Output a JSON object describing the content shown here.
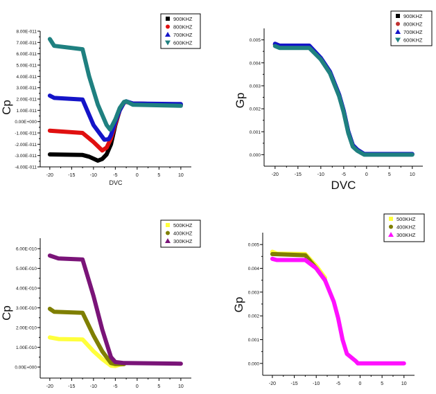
{
  "chart_data": [
    {
      "type": "scatter",
      "xlabel": "DVC",
      "ylabel": "Cp",
      "xlim": [
        -22.2,
        12.4
      ],
      "ylim": [
        -4e-11,
        8e-11
      ],
      "xticks": [
        -20,
        -15,
        -10,
        -5,
        0,
        5,
        10
      ],
      "xtick_labels": [
        "-20",
        "-15",
        "-10",
        "-5",
        "0",
        "5",
        "10"
      ],
      "yticks": [
        8e-11,
        7e-11,
        6e-11,
        5e-11,
        4e-11,
        3e-11,
        2e-11,
        1e-11,
        0,
        -1e-11,
        -2e-11,
        -3e-11,
        -4e-11
      ],
      "ytick_labels": [
        "8.00E-011",
        "7.00E-011",
        "6.00E-011",
        "5.00E-011",
        "4.00E-011",
        "3.00E-011",
        "2.00E-011",
        "1.00E-011",
        "0.00E+000",
        "-1.00E-011",
        "-2.00E-011",
        "-3.00E-011",
        "-4.00E-011"
      ],
      "legend_position": "top-right",
      "grid": false,
      "series": [
        {
          "name": "900KHZ",
          "color": "#000000",
          "marker": "square",
          "x": [
            -20,
            -12.5,
            -11,
            -9,
            -8,
            -7,
            -6,
            -5,
            -4,
            -3,
            -2.5,
            -1,
            10
          ],
          "y": [
            -2.9e-11,
            -2.95e-11,
            -3.1e-11,
            -3.45e-11,
            -3.3e-11,
            -2.9e-11,
            -2e-11,
            -3e-12,
            1e-11,
            1.7e-11,
            1.75e-11,
            1.6e-11,
            1.5e-11
          ]
        },
        {
          "name": "800KHZ",
          "color": "#e01010",
          "marker": "circle",
          "x": [
            -20,
            -12.5,
            -10,
            -8,
            -7,
            -6,
            -5,
            -4,
            -3,
            -2.5,
            -1,
            10
          ],
          "y": [
            -8e-12,
            -1e-11,
            -1.8e-11,
            -2.55e-11,
            -2.3e-11,
            -1.5e-11,
            -2e-12,
            1e-11,
            1.7e-11,
            1.75e-11,
            1.6e-11,
            1.5e-11
          ]
        },
        {
          "name": "700KHZ",
          "color": "#1414c8",
          "marker": "triangle-up",
          "x": [
            -20,
            -19,
            -12.5,
            -10,
            -7.5,
            -6.5,
            -6,
            -5,
            -4,
            -3,
            -2.5,
            -1,
            10
          ],
          "y": [
            2.3e-11,
            2.1e-11,
            1.95e-11,
            -3e-12,
            -1.6e-11,
            -1.55e-11,
            -1.2e-11,
            0,
            1e-11,
            1.7e-11,
            1.8e-11,
            1.6e-11,
            1.55e-11
          ]
        },
        {
          "name": "600KHZ",
          "color": "#1f8080",
          "marker": "triangle-down",
          "x": [
            -20,
            -19,
            -12.5,
            -11,
            -9,
            -7,
            -6.2,
            -5,
            -4,
            -3,
            -2.5,
            -1,
            10
          ],
          "y": [
            7.3e-11,
            6.7e-11,
            6.4e-11,
            4e-11,
            1.5e-11,
            -3e-12,
            -7e-12,
            2e-12,
            1.2e-11,
            1.75e-11,
            1.8e-11,
            1.5e-11,
            1.4e-11
          ]
        }
      ]
    },
    {
      "type": "scatter",
      "xlabel": "DVC",
      "ylabel": "Gp",
      "xlim": [
        -22.4,
        12.3
      ],
      "ylim": [
        -0.0005,
        0.0055
      ],
      "xticks": [
        -20,
        -15,
        -10,
        -5,
        0,
        5,
        10
      ],
      "xtick_labels": [
        "-20",
        "-15",
        "-10",
        "-5",
        "0",
        "5",
        "10"
      ],
      "yticks": [
        0.005,
        0.004,
        0.003,
        0.002,
        0.001,
        0
      ],
      "ytick_labels": [
        "0.005",
        "0.004",
        "0.003",
        "0.002",
        "0.001",
        "0.000"
      ],
      "legend_position": "top-right",
      "grid": false,
      "series": [
        {
          "name": "900KHZ",
          "color": "#000000",
          "marker": "square",
          "x": [
            -20,
            -19,
            -12.5,
            -10,
            -8,
            -6,
            -5,
            -4,
            -3,
            -2,
            -0.5,
            10
          ],
          "y": [
            0.0048,
            0.00472,
            0.00472,
            0.0042,
            0.0036,
            0.0026,
            0.0019,
            0.001,
            0.0004,
            0.0002,
            2e-05,
            2e-05
          ]
        },
        {
          "name": "800KHZ",
          "color": "#c03030",
          "marker": "circle",
          "x": [
            -20,
            -19,
            -12.5,
            -10,
            -8,
            -6,
            -5,
            -4,
            -3,
            -2,
            -0.5,
            10
          ],
          "y": [
            0.0048,
            0.00472,
            0.00472,
            0.0042,
            0.0036,
            0.0026,
            0.0019,
            0.001,
            0.0004,
            0.0002,
            2e-05,
            2e-05
          ]
        },
        {
          "name": "700KHZ",
          "color": "#1414c8",
          "marker": "triangle-up",
          "x": [
            -20,
            -19,
            -12.5,
            -10,
            -8,
            -6,
            -5,
            -4,
            -3,
            -2,
            -0.5,
            10
          ],
          "y": [
            0.00483,
            0.00475,
            0.00475,
            0.00422,
            0.00362,
            0.00262,
            0.00192,
            0.00102,
            0.00042,
            0.00022,
            3e-05,
            3e-05
          ]
        },
        {
          "name": "600KHZ",
          "color": "#1f8080",
          "marker": "triangle-down",
          "x": [
            -20,
            -19,
            -12.5,
            -10,
            -8,
            -6,
            -5,
            -4,
            -3,
            -2,
            -0.5,
            10
          ],
          "y": [
            0.00473,
            0.00465,
            0.00465,
            0.00415,
            0.00355,
            0.00255,
            0.00185,
            0.00095,
            0.00035,
            0.00017,
            0,
            0
          ]
        }
      ]
    },
    {
      "type": "scatter",
      "xlabel": "",
      "ylabel": "Cp",
      "xlim": [
        -22.2,
        12.4
      ],
      "ylim": [
        -5.6e-11,
        6.53e-10
      ],
      "xticks": [
        -20,
        -15,
        -10,
        -5,
        0,
        5,
        10
      ],
      "xtick_labels": [
        "-20",
        "-15",
        "-10",
        "-5",
        "0",
        "5",
        "10"
      ],
      "yticks": [
        6e-10,
        5e-10,
        4e-10,
        3e-10,
        2e-10,
        1e-10,
        0
      ],
      "ytick_labels": [
        "6.00E-010",
        "5.00E-010",
        "4.00E-010",
        "3.00E-010",
        "2.00E-010",
        "1.00E-010",
        "0.00E+000"
      ],
      "legend_position": "top-right",
      "grid": false,
      "series": [
        {
          "name": "500KHZ",
          "color": "#ffff3c",
          "marker": "square",
          "x": [
            -20,
            -18,
            -12.5,
            -10,
            -8,
            -6,
            -5,
            -4,
            -3
          ],
          "y": [
            1.5e-10,
            1.42e-10,
            1.4e-10,
            8e-11,
            4e-11,
            7e-12,
            5e-12,
            1.2e-11,
            1.5e-11
          ]
        },
        {
          "name": "400KHZ",
          "color": "#7f7f00",
          "marker": "circle",
          "x": [
            -20,
            -19,
            -12.5,
            -10,
            -8,
            -6,
            -5,
            -3
          ],
          "y": [
            2.95e-10,
            2.8e-10,
            2.75e-10,
            1.6e-10,
            8e-11,
            2e-11,
            1.5e-11,
            1.5e-11
          ]
        },
        {
          "name": "300KHZ",
          "color": "#7a1478",
          "marker": "triangle-up",
          "x": [
            -20,
            -18,
            -12.5,
            -10,
            -8,
            -6,
            -5,
            -3,
            10
          ],
          "y": [
            5.65e-10,
            5.5e-10,
            5.45e-10,
            3.6e-10,
            1.9e-10,
            5e-11,
            2.5e-11,
            2e-11,
            1.7e-11
          ]
        }
      ]
    },
    {
      "type": "scatter",
      "xlabel": "",
      "ylabel": "Gp",
      "xlim": [
        -22.2,
        12.4
      ],
      "ylim": [
        -0.0005,
        0.0055
      ],
      "xticks": [
        -20,
        -15,
        -10,
        -5,
        0,
        5,
        10
      ],
      "xtick_labels": [
        "-20",
        "-15",
        "-10",
        "-5",
        "0",
        "5",
        "10"
      ],
      "yticks": [
        0.005,
        0.004,
        0.003,
        0.002,
        0.001,
        0
      ],
      "ytick_labels": [
        "0.005",
        "0.004",
        "0.003",
        "0.002",
        "0.001",
        "0.000"
      ],
      "legend_position": "top-right",
      "grid": false,
      "series": [
        {
          "name": "500KHZ",
          "color": "#ffff3c",
          "marker": "square",
          "x": [
            -20,
            -19,
            -12.5,
            -10,
            -8
          ],
          "y": [
            0.0047,
            0.00462,
            0.0046,
            0.0041,
            0.0036
          ]
        },
        {
          "name": "400KHZ",
          "color": "#7f7f00",
          "marker": "circle",
          "x": [
            -20,
            -12.5,
            -10,
            -8
          ],
          "y": [
            0.0046,
            0.00455,
            0.004,
            0.0035
          ]
        },
        {
          "name": "300KHZ",
          "color": "#ff10ff",
          "marker": "triangle-up",
          "x": [
            -20,
            -19,
            -12.5,
            -10,
            -8,
            -6,
            -5,
            -4,
            -3,
            -1,
            -0.5,
            10
          ],
          "y": [
            0.0044,
            0.00435,
            0.00435,
            0.004,
            0.0035,
            0.0026,
            0.0019,
            0.001,
            0.0004,
            0.0001,
            0,
            0
          ]
        }
      ]
    }
  ]
}
